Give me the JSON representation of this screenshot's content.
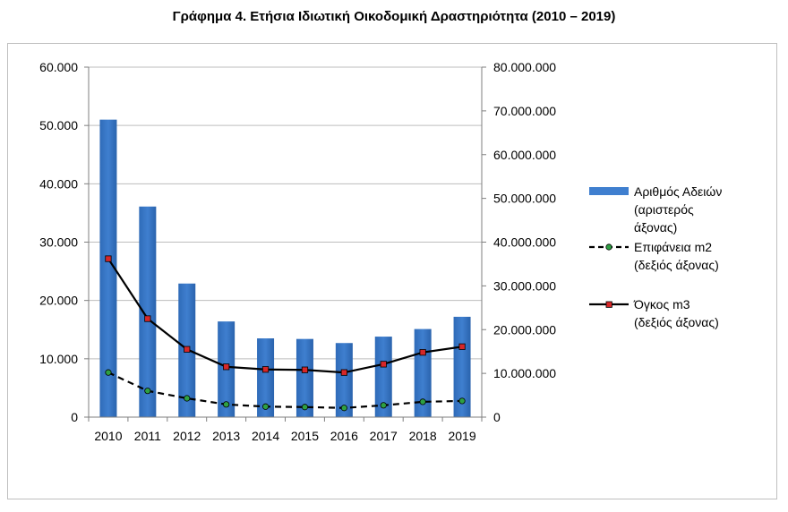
{
  "title": "Γράφημα 4. Ετήσια Ιδιωτική Οικοδομική Δραστηριότητα (2010 – 2019)",
  "chart_data": {
    "type": "bar",
    "title": "Γράφημα 4. Ετήσια Ιδιωτική Οικοδομική Δραστηριότητα (2010 – 2019)",
    "categories": [
      "2010",
      "2011",
      "2012",
      "2013",
      "2014",
      "2015",
      "2016",
      "2017",
      "2018",
      "2019"
    ],
    "series": [
      {
        "name_lines": [
          "Αριθμός Αδειών",
          "(αριστερός",
          "άξονας)"
        ],
        "type": "bar",
        "axis": "left",
        "color": "#3f7fcf",
        "values": [
          51000,
          36100,
          22900,
          16400,
          13500,
          13400,
          12700,
          13800,
          15100,
          17200
        ]
      },
      {
        "name_lines": [
          "Επιφάνεια m2",
          "(δεξιός άξονας)"
        ],
        "type": "line",
        "axis": "right",
        "style": "dashed",
        "color": "#000000",
        "marker_color": "#2ea043",
        "values": [
          10200000,
          6000000,
          4300000,
          2900000,
          2400000,
          2300000,
          2100000,
          2700000,
          3500000,
          3700000
        ]
      },
      {
        "name_lines": [
          "Όγκος m3",
          "(δεξιός άξονας)"
        ],
        "type": "line",
        "axis": "right",
        "style": "solid",
        "color": "#000000",
        "marker_color": "#d62728",
        "values": [
          36200000,
          22500000,
          15500000,
          11500000,
          10900000,
          10800000,
          10200000,
          12100000,
          14800000,
          16100000
        ]
      }
    ],
    "y_left": {
      "ylim": [
        0,
        60000
      ],
      "ticks": [
        0,
        10000,
        20000,
        30000,
        40000,
        50000,
        60000
      ],
      "tick_labels": [
        "0",
        "10.000",
        "20.000",
        "30.000",
        "40.000",
        "50.000",
        "60.000"
      ]
    },
    "y_right": {
      "ylim": [
        0,
        80000000
      ],
      "ticks": [
        0,
        10000000,
        20000000,
        30000000,
        40000000,
        50000000,
        60000000,
        70000000,
        80000000
      ],
      "tick_labels": [
        "0",
        "10.000.000",
        "20.000.000",
        "30.000.000",
        "40.000.000",
        "50.000.000",
        "60.000.000",
        "70.000.000",
        "80.000.000"
      ]
    },
    "grid": true,
    "legend_position": "right"
  }
}
